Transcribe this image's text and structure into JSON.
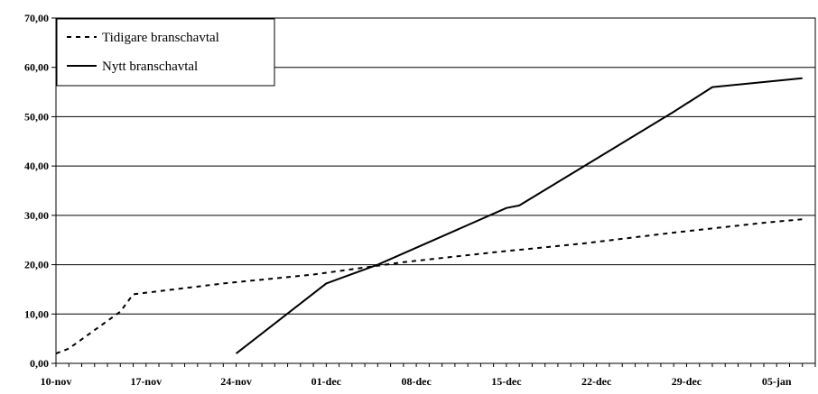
{
  "chart_data": {
    "type": "line",
    "title": "",
    "xlabel": "",
    "ylabel": "",
    "ylim": [
      0,
      70
    ],
    "yticks": [
      "0,00",
      "10,00",
      "20,00",
      "30,00",
      "40,00",
      "50,00",
      "60,00",
      "70,00"
    ],
    "xlim": [
      "2008-11-10",
      "2009-01-08"
    ],
    "xticks": [
      {
        "date": "2008-11-10",
        "label": "10-nov"
      },
      {
        "date": "2008-11-17",
        "label": "17-nov"
      },
      {
        "date": "2008-11-24",
        "label": "24-nov"
      },
      {
        "date": "2008-12-01",
        "label": "01-dec"
      },
      {
        "date": "2008-12-08",
        "label": "08-dec"
      },
      {
        "date": "2008-12-15",
        "label": "15-dec"
      },
      {
        "date": "2008-12-22",
        "label": "22-dec"
      },
      {
        "date": "2008-12-29",
        "label": "29-dec"
      },
      {
        "date": "2009-01-05",
        "label": "05-jan"
      }
    ],
    "grid": "horizontal",
    "legend_position": "top-left",
    "series": [
      {
        "name": "Tidigare branschavtal",
        "style": "dashed",
        "color": "#000000",
        "points": [
          {
            "x": "2008-11-10",
            "y": 2.0
          },
          {
            "x": "2008-11-11",
            "y": 3.0
          },
          {
            "x": "2008-11-15",
            "y": 10.5
          },
          {
            "x": "2008-11-16",
            "y": 14.0
          },
          {
            "x": "2008-11-23",
            "y": 16.2
          },
          {
            "x": "2008-11-30",
            "y": 18.0
          },
          {
            "x": "2008-12-07",
            "y": 20.5
          },
          {
            "x": "2008-12-14",
            "y": 22.5
          },
          {
            "x": "2008-12-21",
            "y": 24.3
          },
          {
            "x": "2008-12-28",
            "y": 26.5
          },
          {
            "x": "2009-01-04",
            "y": 28.5
          },
          {
            "x": "2009-01-07",
            "y": 29.2
          }
        ]
      },
      {
        "name": "Nytt branschavtal",
        "style": "solid",
        "color": "#000000",
        "points": [
          {
            "x": "2008-11-24",
            "y": 2.0
          },
          {
            "x": "2008-12-01",
            "y": 16.2
          },
          {
            "x": "2008-12-05",
            "y": 20.0
          },
          {
            "x": "2008-12-15",
            "y": 31.5
          },
          {
            "x": "2008-12-16",
            "y": 32.0
          },
          {
            "x": "2008-12-28",
            "y": 51.0
          },
          {
            "x": "2008-12-31",
            "y": 56.0
          },
          {
            "x": "2009-01-07",
            "y": 57.8
          }
        ]
      }
    ]
  }
}
